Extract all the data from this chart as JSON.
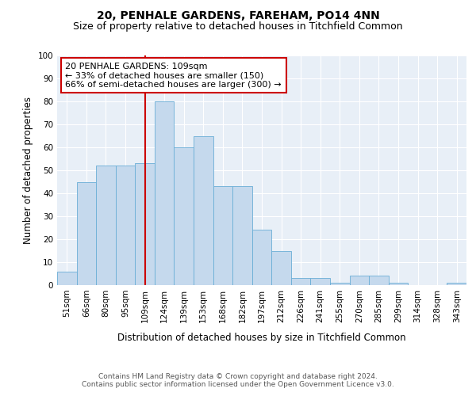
{
  "title": "20, PENHALE GARDENS, FAREHAM, PO14 4NN",
  "subtitle": "Size of property relative to detached houses in Titchfield Common",
  "xlabel": "Distribution of detached houses by size in Titchfield Common",
  "ylabel": "Number of detached properties",
  "categories": [
    "51sqm",
    "66sqm",
    "80sqm",
    "95sqm",
    "109sqm",
    "124sqm",
    "139sqm",
    "153sqm",
    "168sqm",
    "182sqm",
    "197sqm",
    "212sqm",
    "226sqm",
    "241sqm",
    "255sqm",
    "270sqm",
    "285sqm",
    "299sqm",
    "314sqm",
    "328sqm",
    "343sqm"
  ],
  "values": [
    6,
    45,
    52,
    52,
    53,
    80,
    60,
    65,
    43,
    43,
    24,
    15,
    3,
    3,
    1,
    4,
    4,
    1,
    0,
    0,
    1
  ],
  "bar_color": "#c5d9ed",
  "bar_edge_color": "#6aaed6",
  "vline_x_index": 4,
  "vline_color": "#cc0000",
  "annotation_text": "20 PENHALE GARDENS: 109sqm\n← 33% of detached houses are smaller (150)\n66% of semi-detached houses are larger (300) →",
  "annotation_box_color": "white",
  "annotation_box_edge_color": "#cc0000",
  "ylim": [
    0,
    100
  ],
  "yticks": [
    0,
    10,
    20,
    30,
    40,
    50,
    60,
    70,
    80,
    90,
    100
  ],
  "bg_color": "#e8eff7",
  "grid_color": "white",
  "footnote": "Contains HM Land Registry data © Crown copyright and database right 2024.\nContains public sector information licensed under the Open Government Licence v3.0.",
  "title_fontsize": 10,
  "subtitle_fontsize": 9,
  "xlabel_fontsize": 8.5,
  "ylabel_fontsize": 8.5,
  "tick_fontsize": 7.5,
  "annotation_fontsize": 8,
  "footnote_fontsize": 6.5
}
